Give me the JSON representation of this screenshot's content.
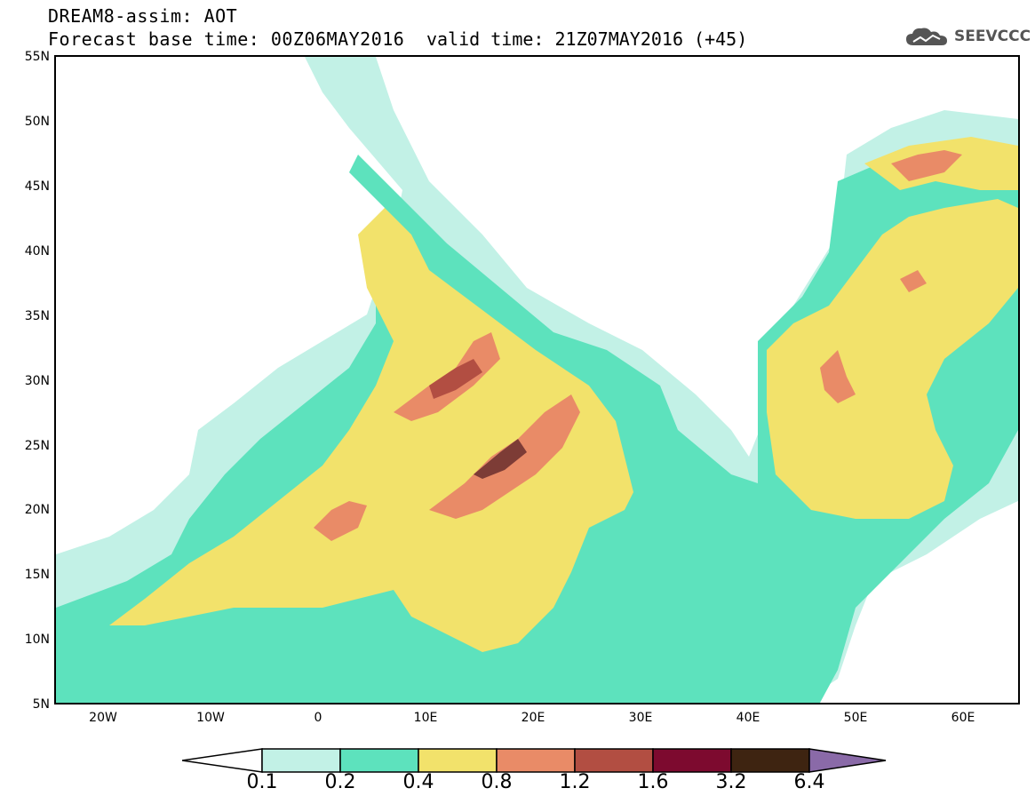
{
  "header": {
    "title_line1": "DREAM8-assim: AOT",
    "title_line2": "Forecast base time: 00Z06MAY2016",
    "valid_time": "valid time: 21Z07MAY2016 (+45)",
    "logo_text": "SEEVCCC"
  },
  "axes": {
    "lat_labels": [
      "55N",
      "50N",
      "45N",
      "40N",
      "35N",
      "30N",
      "25N",
      "20N",
      "15N",
      "10N",
      "5N"
    ],
    "lon_labels": [
      "20W",
      "10W",
      "0",
      "10E",
      "20E",
      "30E",
      "40E",
      "50E",
      "60E"
    ],
    "lon_range": [
      -25,
      65
    ],
    "lat_range": [
      5,
      55
    ]
  },
  "colorbar": {
    "labels": [
      "0.1",
      "0.2",
      "0.4",
      "0.8",
      "1.2",
      "1.6",
      "3.2",
      "6.4"
    ],
    "colors": [
      "#ffffff",
      "#c2f1e6",
      "#5de2bd",
      "#f2e26b",
      "#e98b67",
      "#b24e42",
      "#7d0a2f",
      "#3e2411",
      "#8a6aa8"
    ]
  },
  "map_colors": {
    "c1": "#c2f1e6",
    "c2": "#5de2bd",
    "c3": "#f2e26b",
    "c4": "#e98b67",
    "c5": "#b24e42",
    "c6": "#7d3c36"
  }
}
